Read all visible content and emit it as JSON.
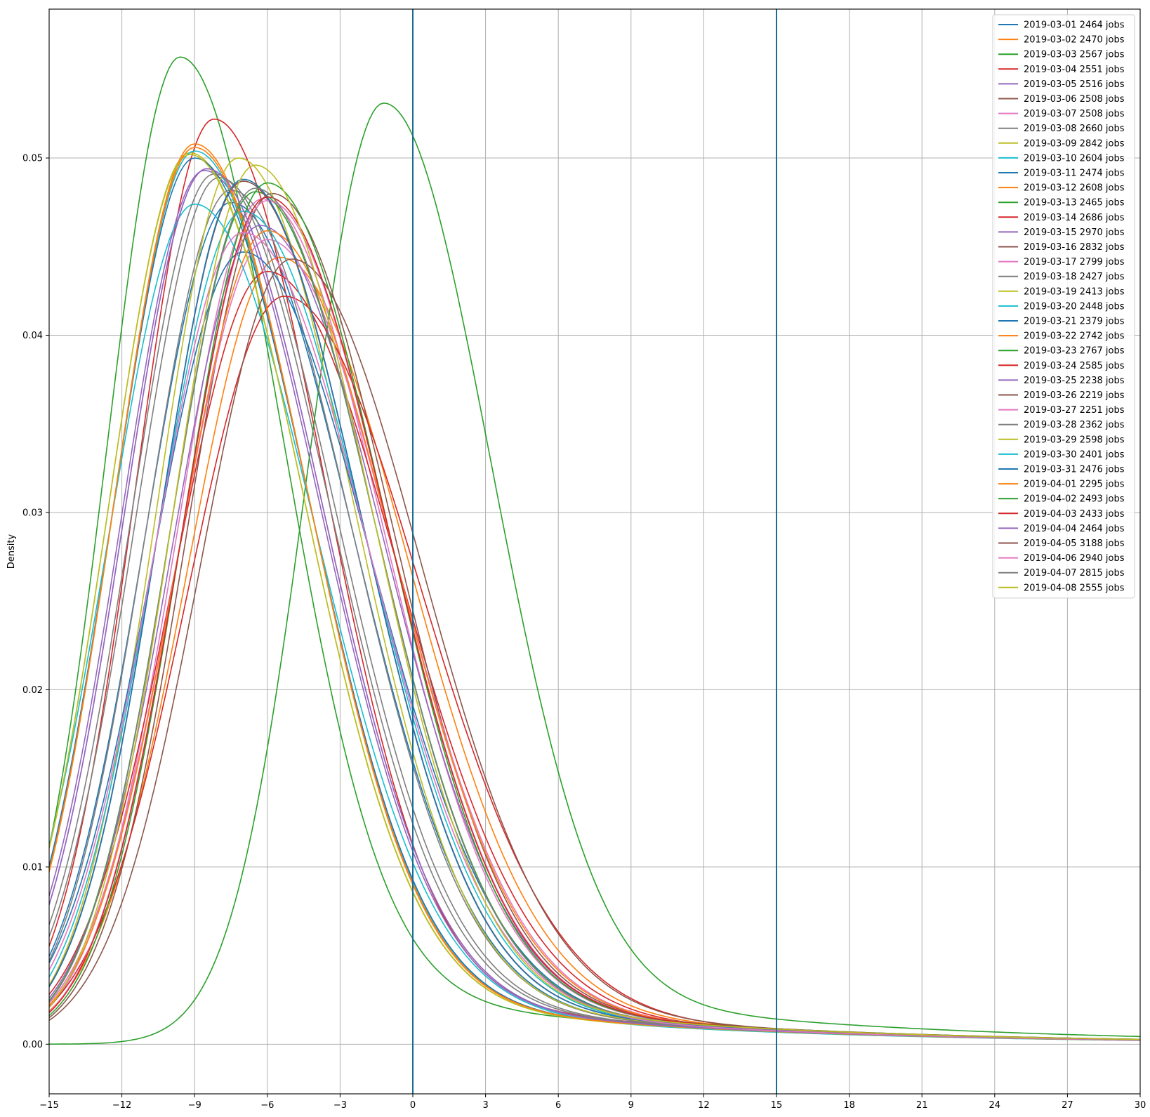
{
  "chart_data": {
    "type": "line",
    "title": "",
    "xlabel": "",
    "ylabel": "Density",
    "xlim": [
      -15,
      30
    ],
    "ylim": [
      -0.0028,
      0.0584
    ],
    "grid": true,
    "legend_position": "top-right",
    "x_ticks": [
      "−15",
      "−12",
      "−9",
      "−6",
      "−3",
      "0",
      "3",
      "6",
      "9",
      "12",
      "15",
      "18",
      "21",
      "24",
      "27",
      "30"
    ],
    "x_tick_values": [
      -15,
      -12,
      -9,
      -6,
      -3,
      0,
      3,
      6,
      9,
      12,
      15,
      18,
      21,
      24,
      27,
      30
    ],
    "y_ticks": [
      "0.00",
      "0.01",
      "0.02",
      "0.03",
      "0.04",
      "0.05"
    ],
    "y_tick_values": [
      0,
      0.01,
      0.02,
      0.03,
      0.04,
      0.05
    ],
    "vertical_lines": [
      {
        "x": 0,
        "color": "#1a6c94"
      },
      {
        "x": 15,
        "color": "#1a6c94"
      }
    ],
    "series": [
      {
        "name": "2019-03-01 2464 jobs",
        "color": "#1f77b4",
        "peak_x": -7.5,
        "peak_y": 0.0475
      },
      {
        "name": "2019-03-02 2470 jobs",
        "color": "#ff7f0e",
        "peak_x": -5.5,
        "peak_y": 0.0444
      },
      {
        "name": "2019-03-03 2567 jobs",
        "color": "#2ca02c",
        "peak_x": -9.6,
        "peak_y": 0.0557
      },
      {
        "name": "2019-03-04 2551 jobs",
        "color": "#d62728",
        "peak_x": -8.2,
        "peak_y": 0.0522
      },
      {
        "name": "2019-03-05 2516 jobs",
        "color": "#9467bd",
        "peak_x": -8.6,
        "peak_y": 0.0493
      },
      {
        "name": "2019-03-06 2508 jobs",
        "color": "#8c564b",
        "peak_x": -7.0,
        "peak_y": 0.0487
      },
      {
        "name": "2019-03-07 2508 jobs",
        "color": "#e377c2",
        "peak_x": -6.2,
        "peak_y": 0.0477
      },
      {
        "name": "2019-03-08 2660 jobs",
        "color": "#7f7f7f",
        "peak_x": -8.0,
        "peak_y": 0.0489
      },
      {
        "name": "2019-03-09 2842 jobs",
        "color": "#bcbd22",
        "peak_x": -9.2,
        "peak_y": 0.0503
      },
      {
        "name": "2019-03-10 2604 jobs",
        "color": "#17becf",
        "peak_x": -9.0,
        "peak_y": 0.0504
      },
      {
        "name": "2019-03-11 2474 jobs",
        "color": "#1f77b4",
        "peak_x": -9.0,
        "peak_y": 0.05
      },
      {
        "name": "2019-03-12 2608 jobs",
        "color": "#ff7f0e",
        "peak_x": -9.0,
        "peak_y": 0.0508
      },
      {
        "name": "2019-03-13 2465 jobs",
        "color": "#2ca02c",
        "peak_x": -1.2,
        "peak_y": 0.0531
      },
      {
        "name": "2019-03-14 2686 jobs",
        "color": "#d62728",
        "peak_x": -6.0,
        "peak_y": 0.0436
      },
      {
        "name": "2019-03-15 2970 jobs",
        "color": "#9467bd",
        "peak_x": -6.3,
        "peak_y": 0.0462
      },
      {
        "name": "2019-03-16 2832 jobs",
        "color": "#8c564b",
        "peak_x": -5.8,
        "peak_y": 0.048
      },
      {
        "name": "2019-03-17 2799 jobs",
        "color": "#e377c2",
        "peak_x": -6.0,
        "peak_y": 0.0454
      },
      {
        "name": "2019-03-18 2427 jobs",
        "color": "#7f7f7f",
        "peak_x": -7.5,
        "peak_y": 0.0482
      },
      {
        "name": "2019-03-19 2413 jobs",
        "color": "#bcbd22",
        "peak_x": -7.2,
        "peak_y": 0.05
      },
      {
        "name": "2019-03-20 2448 jobs",
        "color": "#17becf",
        "peak_x": -9.0,
        "peak_y": 0.0474
      },
      {
        "name": "2019-03-21 2379 jobs",
        "color": "#1f77b4",
        "peak_x": -7.0,
        "peak_y": 0.0447
      },
      {
        "name": "2019-03-22 2742 jobs",
        "color": "#ff7f0e",
        "peak_x": -6.0,
        "peak_y": 0.0459
      },
      {
        "name": "2019-03-23 2767 jobs",
        "color": "#2ca02c",
        "peak_x": -6.5,
        "peak_y": 0.0481
      },
      {
        "name": "2019-03-24 2585 jobs",
        "color": "#d62728",
        "peak_x": -5.3,
        "peak_y": 0.0422
      },
      {
        "name": "2019-03-25 2238 jobs",
        "color": "#9467bd",
        "peak_x": -8.5,
        "peak_y": 0.0494
      },
      {
        "name": "2019-03-26 2219 jobs",
        "color": "#8c564b",
        "peak_x": -7.0,
        "peak_y": 0.0487
      },
      {
        "name": "2019-03-27 2251 jobs",
        "color": "#e377c2",
        "peak_x": -6.0,
        "peak_y": 0.0476
      },
      {
        "name": "2019-03-28 2362 jobs",
        "color": "#7f7f7f",
        "peak_x": -8.2,
        "peak_y": 0.0491
      },
      {
        "name": "2019-03-29 2598 jobs",
        "color": "#bcbd22",
        "peak_x": -9.2,
        "peak_y": 0.0502
      },
      {
        "name": "2019-03-30 2401 jobs",
        "color": "#17becf",
        "peak_x": -7.0,
        "peak_y": 0.047
      },
      {
        "name": "2019-03-31 2476 jobs",
        "color": "#1f77b4",
        "peak_x": -7.0,
        "peak_y": 0.0488
      },
      {
        "name": "2019-04-01 2295 jobs",
        "color": "#ff7f0e",
        "peak_x": -9.0,
        "peak_y": 0.0506
      },
      {
        "name": "2019-04-02 2493 jobs",
        "color": "#2ca02c",
        "peak_x": -6.0,
        "peak_y": 0.0486
      },
      {
        "name": "2019-04-03 2433 jobs",
        "color": "#d62728",
        "peak_x": -6.0,
        "peak_y": 0.0478
      },
      {
        "name": "2019-04-04 2464 jobs",
        "color": "#9467bd",
        "peak_x": -8.5,
        "peak_y": 0.0494
      },
      {
        "name": "2019-04-05 3188 jobs",
        "color": "#8c564b",
        "peak_x": -5.0,
        "peak_y": 0.0443
      },
      {
        "name": "2019-04-06 2940 jobs",
        "color": "#e377c2",
        "peak_x": -7.0,
        "peak_y": 0.0458
      },
      {
        "name": "2019-04-07 2815 jobs",
        "color": "#7f7f7f",
        "peak_x": -6.5,
        "peak_y": 0.0483
      },
      {
        "name": "2019-04-08 2555 jobs",
        "color": "#bcbd22",
        "peak_x": -6.5,
        "peak_y": 0.0496
      }
    ]
  }
}
